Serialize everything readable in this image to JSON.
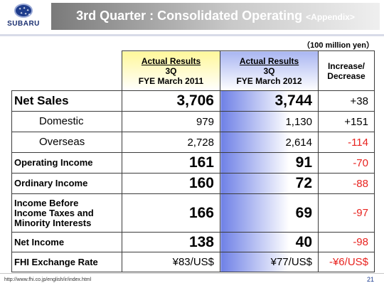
{
  "header": {
    "logo_text": "SUBARU",
    "title": "3rd Quarter : Consolidated Operating ",
    "title_suffix": "<Appendix>"
  },
  "unit": "（100 million yen）",
  "table": {
    "columns": [
      {
        "line1": "Actual Results",
        "line2": "3Q",
        "line3": "FYE March 2011"
      },
      {
        "line1": "Actual Results",
        "line2": "3Q",
        "line3": "FYE March 2012"
      },
      {
        "line1": "Increase/",
        "line2": "Decrease"
      }
    ],
    "rows": [
      {
        "label": "Net Sales",
        "fy2011": "3,706",
        "fy2012": "3,744",
        "change": "+38"
      },
      {
        "label": "Domestic",
        "fy2011": "979",
        "fy2012": "1,130",
        "change": "+151"
      },
      {
        "label": "Overseas",
        "fy2011": "2,728",
        "fy2012": "2,614",
        "change": "-114"
      },
      {
        "label": "Operating Income",
        "fy2011": "161",
        "fy2012": "91",
        "change": "-70"
      },
      {
        "label": "Ordinary Income",
        "fy2011": "160",
        "fy2012": "72",
        "change": "-88"
      },
      {
        "label_line1": "Income Before",
        "label_line2": "Income Taxes and",
        "label_line3": "Minority Interests",
        "fy2011": "166",
        "fy2012": "69",
        "change": "-97"
      },
      {
        "label": "Net Income",
        "fy2011": "138",
        "fy2012": "40",
        "change": "-98"
      },
      {
        "label": "FHI Exchange Rate",
        "fy2011": "¥83/US$",
        "fy2012": "¥77/US$",
        "change": "-¥6/US$"
      }
    ]
  },
  "footer": {
    "url": "http://www.fhi.co.jp/english/ir/index.html",
    "page": "21"
  },
  "colors": {
    "negative": "#e8231f",
    "fy2011_header": "#fff79a",
    "fy2012_accent": "#6e80e6"
  }
}
